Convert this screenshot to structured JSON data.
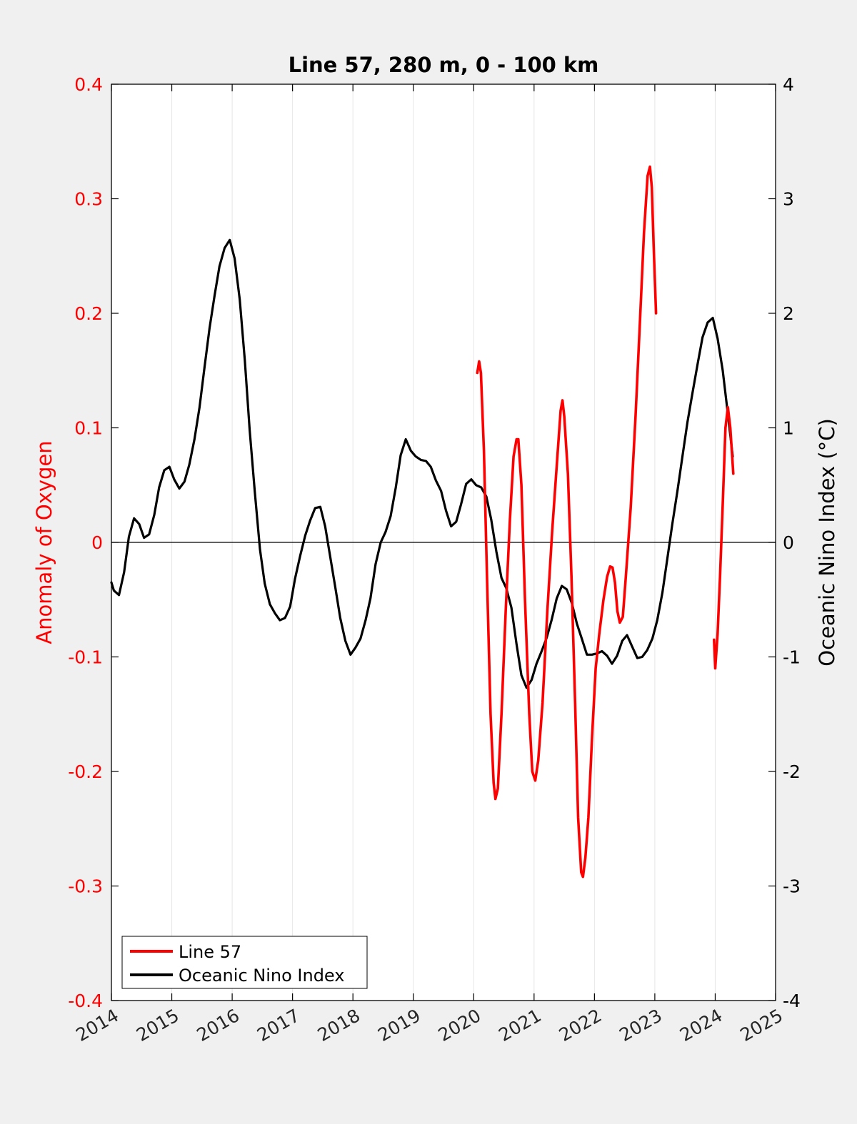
{
  "chart_data": {
    "type": "line",
    "title": "Line 57, 280 m, 0 - 100 km",
    "xlabel": "",
    "ylabel_left": "Anomaly of Oxygen",
    "ylabel_right": "Oceanic Nino Index (°C)",
    "xlim": [
      2014,
      2025
    ],
    "ylim_left": [
      -0.4,
      0.4
    ],
    "ylim_right": [
      -4,
      4
    ],
    "x_ticks": [
      "2014",
      "2015",
      "2016",
      "2017",
      "2018",
      "2019",
      "2020",
      "2021",
      "2022",
      "2023",
      "2024",
      "2025"
    ],
    "y_ticks_left": [
      "0.4",
      "0.3",
      "0.2",
      "0.1",
      "0",
      "-0.1",
      "-0.2",
      "-0.3",
      "-0.4"
    ],
    "y_ticks_right": [
      "4",
      "3",
      "2",
      "1",
      "0",
      "-1",
      "-2",
      "-3",
      "-4"
    ],
    "grid": "vertical",
    "legend_position": "bottom-left",
    "colors": {
      "line57": "#ff0000",
      "oni": "#000000",
      "left_axis": "#ff0000",
      "right_axis": "#000000"
    },
    "series": [
      {
        "name": "Line 57",
        "axis": "left",
        "segments": [
          [
            [
              2020.06,
              0.148
            ],
            [
              2020.09,
              0.158
            ],
            [
              2020.12,
              0.148
            ],
            [
              2020.17,
              0.08
            ],
            [
              2020.22,
              -0.03
            ],
            [
              2020.28,
              -0.15
            ],
            [
              2020.33,
              -0.21
            ],
            [
              2020.36,
              -0.224
            ],
            [
              2020.4,
              -0.215
            ],
            [
              2020.46,
              -0.15
            ],
            [
              2020.53,
              -0.06
            ],
            [
              2020.6,
              0.02
            ],
            [
              2020.66,
              0.075
            ],
            [
              2020.71,
              0.09
            ],
            [
              2020.74,
              0.09
            ],
            [
              2020.79,
              0.05
            ],
            [
              2020.85,
              -0.05
            ],
            [
              2020.92,
              -0.15
            ],
            [
              2020.97,
              -0.2
            ],
            [
              2021.02,
              -0.208
            ],
            [
              2021.07,
              -0.19
            ],
            [
              2021.14,
              -0.14
            ],
            [
              2021.22,
              -0.06
            ],
            [
              2021.3,
              0.01
            ],
            [
              2021.38,
              0.07
            ],
            [
              2021.44,
              0.115
            ],
            [
              2021.47,
              0.124
            ],
            [
              2021.5,
              0.11
            ],
            [
              2021.56,
              0.06
            ],
            [
              2021.62,
              -0.03
            ],
            [
              2021.68,
              -0.14
            ],
            [
              2021.73,
              -0.24
            ],
            [
              2021.78,
              -0.288
            ],
            [
              2021.81,
              -0.292
            ],
            [
              2021.85,
              -0.275
            ],
            [
              2021.9,
              -0.24
            ],
            [
              2021.96,
              -0.17
            ],
            [
              2022.02,
              -0.11
            ],
            [
              2022.08,
              -0.08
            ],
            [
              2022.15,
              -0.05
            ],
            [
              2022.21,
              -0.03
            ],
            [
              2022.26,
              -0.021
            ],
            [
              2022.3,
              -0.022
            ],
            [
              2022.34,
              -0.035
            ],
            [
              2022.38,
              -0.06
            ],
            [
              2022.42,
              -0.07
            ],
            [
              2022.47,
              -0.065
            ],
            [
              2022.52,
              -0.03
            ],
            [
              2022.6,
              0.03
            ],
            [
              2022.68,
              0.11
            ],
            [
              2022.76,
              0.2
            ],
            [
              2022.82,
              0.27
            ],
            [
              2022.88,
              0.32
            ],
            [
              2022.92,
              0.328
            ],
            [
              2022.95,
              0.31
            ],
            [
              2022.98,
              0.26
            ],
            [
              2023.02,
              0.2
            ]
          ],
          [
            [
              2023.98,
              -0.085
            ],
            [
              2024.0,
              -0.11
            ],
            [
              2024.04,
              -0.08
            ],
            [
              2024.08,
              -0.03
            ],
            [
              2024.13,
              0.04
            ],
            [
              2024.17,
              0.1
            ],
            [
              2024.21,
              0.118
            ],
            [
              2024.25,
              0.1
            ],
            [
              2024.3,
              0.06
            ]
          ]
        ]
      },
      {
        "name": "Oceanic Nino Index",
        "axis": "right",
        "points": [
          [
            2014.0,
            -0.35
          ],
          [
            2014.04,
            -0.42
          ],
          [
            2014.125,
            -0.46
          ],
          [
            2014.21,
            -0.26
          ],
          [
            2014.29,
            0.05
          ],
          [
            2014.375,
            0.21
          ],
          [
            2014.46,
            0.16
          ],
          [
            2014.54,
            0.04
          ],
          [
            2014.625,
            0.07
          ],
          [
            2014.71,
            0.24
          ],
          [
            2014.79,
            0.48
          ],
          [
            2014.875,
            0.63
          ],
          [
            2014.96,
            0.66
          ],
          [
            2015.04,
            0.55
          ],
          [
            2015.125,
            0.47
          ],
          [
            2015.21,
            0.53
          ],
          [
            2015.29,
            0.68
          ],
          [
            2015.375,
            0.9
          ],
          [
            2015.46,
            1.18
          ],
          [
            2015.54,
            1.52
          ],
          [
            2015.625,
            1.87
          ],
          [
            2015.71,
            2.16
          ],
          [
            2015.79,
            2.41
          ],
          [
            2015.875,
            2.57
          ],
          [
            2015.96,
            2.64
          ],
          [
            2016.04,
            2.48
          ],
          [
            2016.125,
            2.12
          ],
          [
            2016.21,
            1.59
          ],
          [
            2016.29,
            0.98
          ],
          [
            2016.375,
            0.44
          ],
          [
            2016.46,
            -0.06
          ],
          [
            2016.54,
            -0.36
          ],
          [
            2016.625,
            -0.54
          ],
          [
            2016.71,
            -0.62
          ],
          [
            2016.79,
            -0.68
          ],
          [
            2016.875,
            -0.66
          ],
          [
            2016.96,
            -0.56
          ],
          [
            2017.04,
            -0.32
          ],
          [
            2017.125,
            -0.12
          ],
          [
            2017.21,
            0.06
          ],
          [
            2017.29,
            0.19
          ],
          [
            2017.375,
            0.3
          ],
          [
            2017.46,
            0.31
          ],
          [
            2017.54,
            0.14
          ],
          [
            2017.625,
            -0.13
          ],
          [
            2017.71,
            -0.4
          ],
          [
            2017.79,
            -0.66
          ],
          [
            2017.875,
            -0.86
          ],
          [
            2017.96,
            -0.98
          ],
          [
            2018.04,
            -0.92
          ],
          [
            2018.125,
            -0.84
          ],
          [
            2018.21,
            -0.68
          ],
          [
            2018.29,
            -0.49
          ],
          [
            2018.375,
            -0.19
          ],
          [
            2018.46,
            0.0
          ],
          [
            2018.54,
            0.09
          ],
          [
            2018.625,
            0.23
          ],
          [
            2018.71,
            0.48
          ],
          [
            2018.79,
            0.76
          ],
          [
            2018.875,
            0.9
          ],
          [
            2018.96,
            0.8
          ],
          [
            2019.04,
            0.75
          ],
          [
            2019.125,
            0.72
          ],
          [
            2019.21,
            0.71
          ],
          [
            2019.29,
            0.66
          ],
          [
            2019.375,
            0.54
          ],
          [
            2019.46,
            0.45
          ],
          [
            2019.54,
            0.28
          ],
          [
            2019.625,
            0.14
          ],
          [
            2019.71,
            0.18
          ],
          [
            2019.79,
            0.33
          ],
          [
            2019.875,
            0.51
          ],
          [
            2019.96,
            0.55
          ],
          [
            2020.04,
            0.5
          ],
          [
            2020.125,
            0.48
          ],
          [
            2020.21,
            0.4
          ],
          [
            2020.29,
            0.2
          ],
          [
            2020.375,
            -0.08
          ],
          [
            2020.46,
            -0.31
          ],
          [
            2020.54,
            -0.4
          ],
          [
            2020.625,
            -0.57
          ],
          [
            2020.71,
            -0.89
          ],
          [
            2020.79,
            -1.16
          ],
          [
            2020.875,
            -1.27
          ],
          [
            2020.96,
            -1.2
          ],
          [
            2021.04,
            -1.06
          ],
          [
            2021.125,
            -0.95
          ],
          [
            2021.21,
            -0.83
          ],
          [
            2021.29,
            -0.68
          ],
          [
            2021.375,
            -0.49
          ],
          [
            2021.46,
            -0.38
          ],
          [
            2021.54,
            -0.41
          ],
          [
            2021.625,
            -0.53
          ],
          [
            2021.71,
            -0.71
          ],
          [
            2021.79,
            -0.84
          ],
          [
            2021.875,
            -0.98
          ],
          [
            2021.96,
            -0.98
          ],
          [
            2022.04,
            -0.97
          ],
          [
            2022.125,
            -0.95
          ],
          [
            2022.21,
            -0.99
          ],
          [
            2022.29,
            -1.06
          ],
          [
            2022.375,
            -0.99
          ],
          [
            2022.46,
            -0.86
          ],
          [
            2022.54,
            -0.81
          ],
          [
            2022.625,
            -0.91
          ],
          [
            2022.71,
            -1.01
          ],
          [
            2022.79,
            -1.0
          ],
          [
            2022.875,
            -0.94
          ],
          [
            2022.96,
            -0.84
          ],
          [
            2023.04,
            -0.68
          ],
          [
            2023.125,
            -0.44
          ],
          [
            2023.21,
            -0.13
          ],
          [
            2023.29,
            0.16
          ],
          [
            2023.375,
            0.45
          ],
          [
            2023.46,
            0.76
          ],
          [
            2023.54,
            1.05
          ],
          [
            2023.625,
            1.31
          ],
          [
            2023.71,
            1.56
          ],
          [
            2023.79,
            1.79
          ],
          [
            2023.875,
            1.92
          ],
          [
            2023.96,
            1.96
          ],
          [
            2024.04,
            1.78
          ],
          [
            2024.125,
            1.5
          ],
          [
            2024.21,
            1.12
          ],
          [
            2024.29,
            0.75
          ]
        ]
      }
    ]
  }
}
